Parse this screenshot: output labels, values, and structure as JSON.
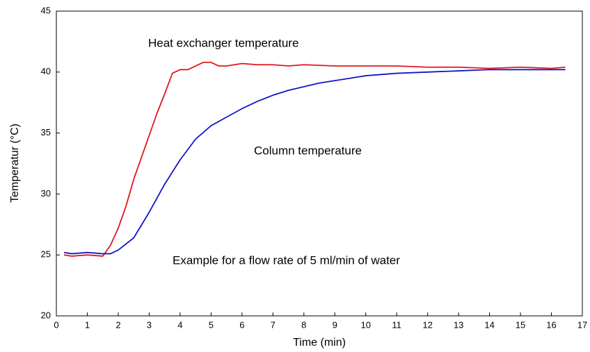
{
  "chart_data": {
    "type": "line",
    "xlabel": "Time (min)",
    "ylabel": "Temperatur (°C)",
    "annotations": [
      "Heat exchanger temperature",
      "Column temperature",
      "Example for a flow rate of 5 ml/min of water"
    ],
    "xlim": [
      0,
      17
    ],
    "xticks": [
      0,
      1,
      2,
      3,
      4,
      5,
      6,
      7,
      8,
      9,
      10,
      11,
      12,
      13,
      14,
      15,
      16,
      17
    ],
    "ylim": [
      20,
      45
    ],
    "yticks": [
      20,
      25,
      30,
      35,
      40,
      45
    ],
    "grid": false,
    "series": [
      {
        "color": "#e0141e",
        "x": [
          0.25,
          0.5,
          1.0,
          1.5,
          1.75,
          2.0,
          2.25,
          2.5,
          2.75,
          3.0,
          3.25,
          3.5,
          3.75,
          4.0,
          4.25,
          4.5,
          4.75,
          5.0,
          5.25,
          5.5,
          6.0,
          6.5,
          7.0,
          7.5,
          8.0,
          9.0,
          10,
          11,
          12,
          13,
          14,
          15,
          16,
          16.45
        ],
        "values": [
          25.0,
          24.9,
          25.0,
          24.9,
          25.8,
          27.2,
          29.0,
          31.2,
          33.0,
          34.8,
          36.6,
          38.2,
          39.9,
          40.2,
          40.2,
          40.5,
          40.8,
          40.8,
          40.5,
          40.5,
          40.7,
          40.6,
          40.6,
          40.5,
          40.6,
          40.5,
          40.5,
          40.5,
          40.4,
          40.4,
          40.3,
          40.4,
          40.3,
          40.4
        ]
      },
      {
        "color": "#1414c8",
        "x": [
          0.25,
          0.5,
          1.0,
          1.5,
          1.75,
          2.0,
          2.5,
          3.0,
          3.5,
          4.0,
          4.5,
          5.0,
          5.5,
          6.0,
          6.5,
          7.0,
          7.5,
          8.0,
          8.5,
          9.0,
          9.5,
          10,
          11,
          12,
          13,
          14,
          15,
          16,
          16.45
        ],
        "values": [
          25.2,
          25.1,
          25.2,
          25.1,
          25.1,
          25.4,
          26.4,
          28.5,
          30.8,
          32.8,
          34.5,
          35.6,
          36.3,
          37.0,
          37.6,
          38.1,
          38.5,
          38.8,
          39.1,
          39.3,
          39.5,
          39.7,
          39.9,
          40.0,
          40.1,
          40.2,
          40.2,
          40.2,
          40.2
        ]
      }
    ]
  }
}
